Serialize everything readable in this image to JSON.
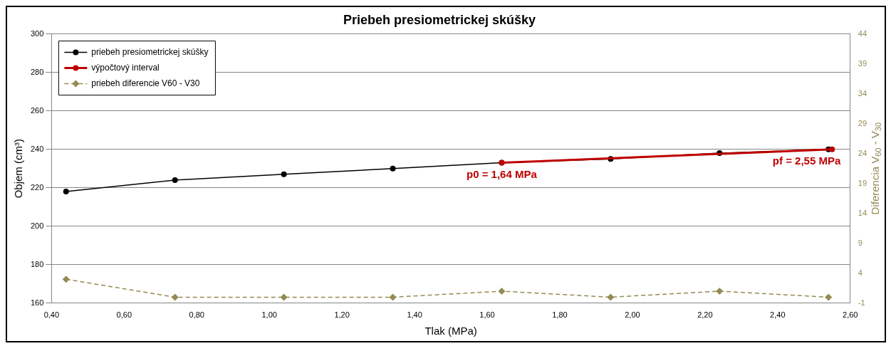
{
  "chart_data": {
    "type": "line",
    "title": "Priebeh presiometrickej skúšky",
    "xlabel": "Tlak (MPa)",
    "ylabel": "Objem (cm³)",
    "y2label": "Diferencia V$_{60}$ - V$_{30}$",
    "series": [
      {
        "name": "priebeh presiometrickej skúšky",
        "color": "#000000",
        "x": [
          0.44,
          0.74,
          1.04,
          1.34,
          1.64,
          1.94,
          2.24,
          2.54
        ],
        "values": [
          218,
          224,
          227,
          230,
          233,
          235,
          238,
          240
        ],
        "marker": "circle",
        "line_style": "solid"
      },
      {
        "name": "výpočtový interval",
        "color": "#c00000",
        "x": [
          1.64,
          2.55
        ],
        "values": [
          233,
          240
        ],
        "marker": "circle",
        "line_style": "solid"
      },
      {
        "name": "priebeh diferencie V60 - V30",
        "color": "#948a54",
        "x": [
          0.44,
          0.74,
          1.04,
          1.34,
          1.64,
          1.94,
          2.24,
          2.54
        ],
        "values": [
          3,
          0,
          0,
          0,
          1,
          0,
          1,
          0
        ],
        "marker": "diamond",
        "line_style": "dashed",
        "axis": "y2"
      }
    ],
    "xlim": [
      0.4,
      2.6
    ],
    "xticks": [
      {
        "value": 0.4,
        "label": "0,40"
      },
      {
        "value": 0.6,
        "label": "0,60"
      },
      {
        "value": 0.8,
        "label": "0,80"
      },
      {
        "value": 1.0,
        "label": "1,00"
      },
      {
        "value": 1.2,
        "label": "1,20"
      },
      {
        "value": 1.4,
        "label": "1,40"
      },
      {
        "value": 1.6,
        "label": "1,60"
      },
      {
        "value": 1.8,
        "label": "1,80"
      },
      {
        "value": 2.0,
        "label": "2,00"
      },
      {
        "value": 2.2,
        "label": "2,20"
      },
      {
        "value": 2.4,
        "label": "2,40"
      },
      {
        "value": 2.6,
        "label": "2,60"
      }
    ],
    "ylim": [
      160,
      300
    ],
    "yticks": [
      160,
      180,
      200,
      220,
      240,
      260,
      280,
      300
    ],
    "y2lim": [
      -1,
      44
    ],
    "y2ticks": [
      -1,
      4,
      9,
      14,
      19,
      24,
      29,
      34,
      39,
      44
    ],
    "annotations": [
      {
        "text": "p0 = 1,64 MPa",
        "x": 1.64,
        "y": 233
      },
      {
        "text": "pf = 2,55 MPa",
        "x": 2.55,
        "y": 240
      }
    ],
    "grid": "y",
    "legend": "top left"
  }
}
